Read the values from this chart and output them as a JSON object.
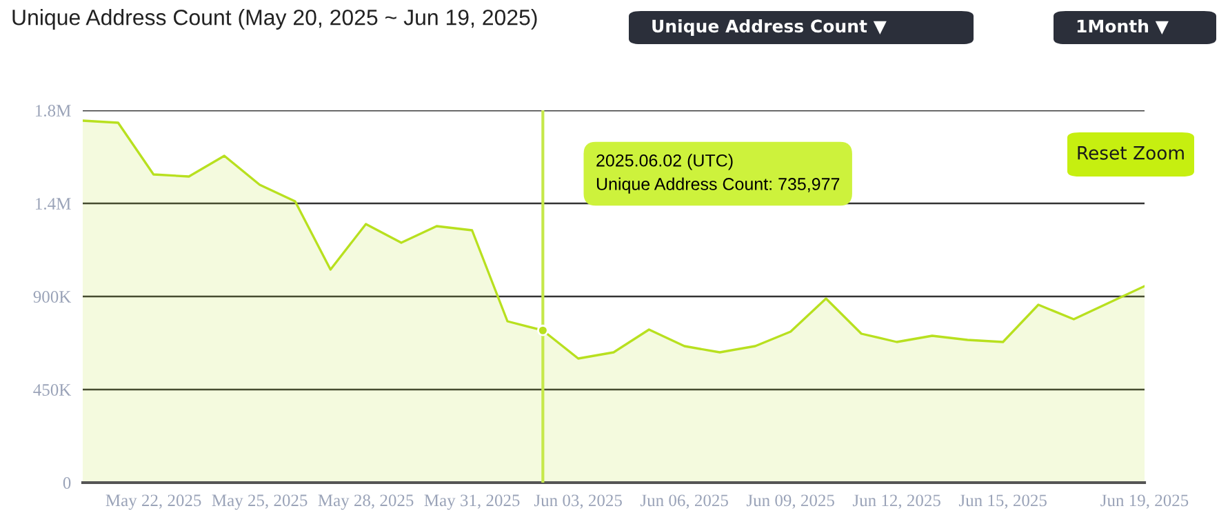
{
  "chart_data": {
    "type": "area",
    "title": "Unique Address Count (May 20, 2025 ~ Jun 19, 2025)",
    "x": [
      "2025-05-20",
      "2025-05-21",
      "2025-05-22",
      "2025-05-23",
      "2025-05-24",
      "2025-05-25",
      "2025-05-26",
      "2025-05-27",
      "2025-05-28",
      "2025-05-29",
      "2025-05-30",
      "2025-05-31",
      "2025-06-01",
      "2025-06-02",
      "2025-06-03",
      "2025-06-04",
      "2025-06-05",
      "2025-06-06",
      "2025-06-07",
      "2025-06-08",
      "2025-06-09",
      "2025-06-10",
      "2025-06-11",
      "2025-06-12",
      "2025-06-13",
      "2025-06-14",
      "2025-06-15",
      "2025-06-16",
      "2025-06-17",
      "2025-06-18",
      "2025-06-19"
    ],
    "series": [
      {
        "color": "#b8e01f",
        "values": [
          1750000,
          1740000,
          1490000,
          1480000,
          1580000,
          1440000,
          1360000,
          1030000,
          1250000,
          1160000,
          1240000,
          1220000,
          780000,
          735977,
          600000,
          630000,
          740000,
          660000,
          630000,
          660000,
          730000,
          890000,
          720000,
          680000,
          710000,
          690000,
          680000,
          860000,
          790000,
          870000,
          950000
        ]
      }
    ],
    "xlim": [
      "2025-05-20",
      "2025-06-19"
    ],
    "xticks": [
      {
        "value": "2025-05-22",
        "label": "May 22, 2025"
      },
      {
        "value": "2025-05-25",
        "label": "May 25, 2025"
      },
      {
        "value": "2025-05-28",
        "label": "May 28, 2025"
      },
      {
        "value": "2025-05-31",
        "label": "May 31, 2025"
      },
      {
        "value": "2025-06-03",
        "label": "Jun 03, 2025"
      },
      {
        "value": "2025-06-06",
        "label": "Jun 06, 2025"
      },
      {
        "value": "2025-06-09",
        "label": "Jun 09, 2025"
      },
      {
        "value": "2025-06-12",
        "label": "Jun 12, 2025"
      },
      {
        "value": "2025-06-15",
        "label": "Jun 15, 2025"
      },
      {
        "value": "2025-06-19",
        "label": "Jun 19, 2025"
      }
    ],
    "ylim": [
      0,
      1800000
    ],
    "yticks": [
      {
        "value": 0,
        "label": "0"
      },
      {
        "value": 450000,
        "label": "450K"
      },
      {
        "value": 900000,
        "label": "900K"
      },
      {
        "value": 1350000,
        "label": "1.4M"
      },
      {
        "value": 1800000,
        "label": "1.8M"
      }
    ],
    "grid": "y",
    "ref_lines": [
      {
        "axis": "x",
        "value": "2025-06-02",
        "color": "#c6e84a"
      }
    ],
    "annotations": [
      "2025.06.02 (UTC)\nUnique Address Count: 735,977",
      "Unique Address Count ▼",
      "1Month ▼",
      "Reset Zoom"
    ]
  }
}
